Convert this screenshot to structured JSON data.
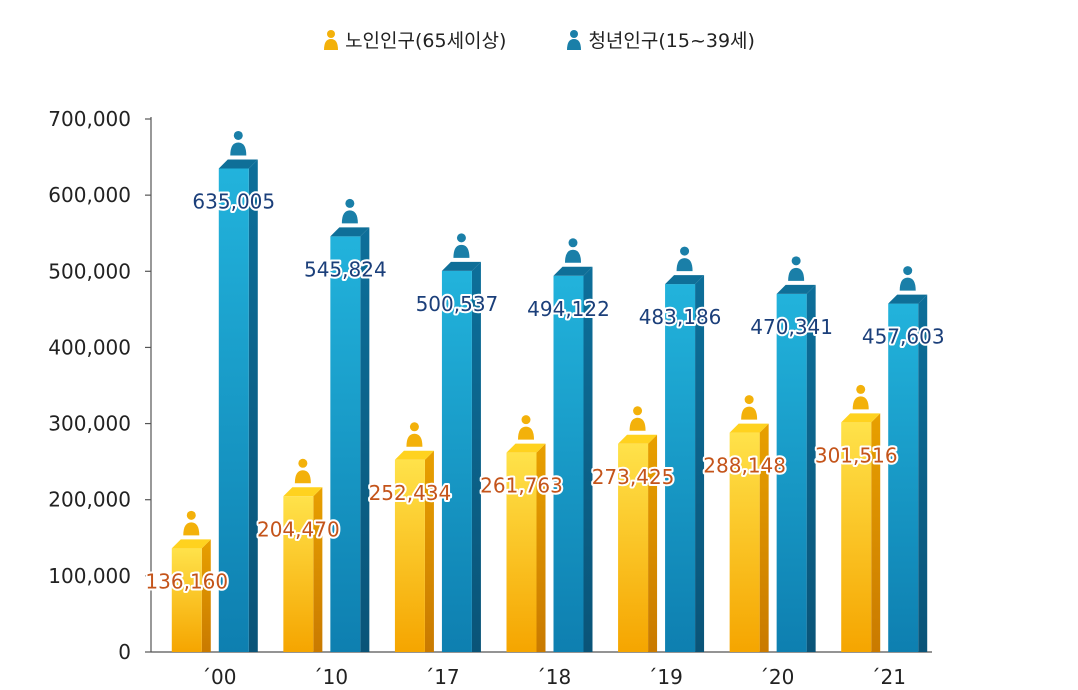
{
  "chart_data": {
    "type": "bar",
    "categories": [
      "´00",
      "´10",
      "´17",
      "´18",
      "´19",
      "´20",
      "´21"
    ],
    "series": [
      {
        "name": "노인인구(65세이상)",
        "values": [
          136160,
          204470,
          252434,
          261763,
          273425,
          288148,
          301516
        ],
        "labels": [
          "136,160",
          "204,470",
          "252,434",
          "261,763",
          "273,425",
          "288,148",
          "301,516"
        ],
        "color": "#f7b500",
        "label_color": "#c4541a"
      },
      {
        "name": "청년인구(15~39세)",
        "values": [
          635005,
          545824,
          500537,
          494122,
          483186,
          470341,
          457603
        ],
        "labels": [
          "635,005",
          "545,824",
          "500,537",
          "494,122",
          "483,186",
          "470,341",
          "457,603"
        ],
        "color": "#1a93c4",
        "label_color": "#1b3f7a"
      }
    ],
    "yticks": [
      "0",
      "100,000",
      "200,000",
      "300,000",
      "400,000",
      "500,000",
      "600,000",
      "700,000"
    ],
    "ylim": [
      0,
      700000
    ],
    "legend_position": "top-center",
    "grid": false
  }
}
